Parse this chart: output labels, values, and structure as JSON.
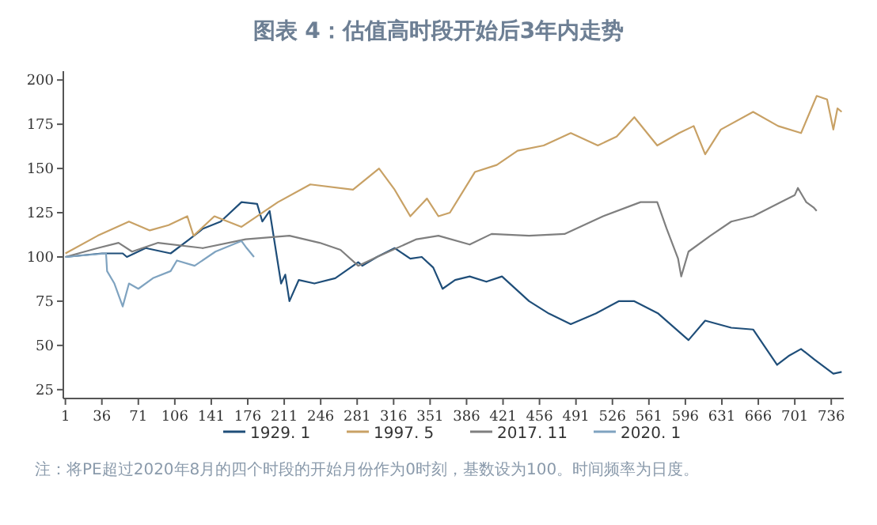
{
  "chart_data": {
    "type": "line",
    "title": "图表 4：估值高时段开始后3年内走势",
    "annotations": [
      "注：将PE超过2020年8月的四个时段的开始月份作为0时刻，基数设为100。时间频率为日度。"
    ],
    "xlim": [
      -1,
      748
    ],
    "xticks": [
      1,
      36,
      71,
      106,
      141,
      176,
      211,
      246,
      281,
      316,
      351,
      386,
      421,
      456,
      491,
      526,
      561,
      596,
      631,
      666,
      701,
      736
    ],
    "ylim": [
      20,
      205
    ],
    "yticks": [
      25,
      50,
      75,
      100,
      125,
      150,
      175,
      200
    ],
    "grid": false,
    "legend": "bottom",
    "series": [
      {
        "name": "1929. 1",
        "color": "#1f4e79",
        "x": [
          1,
          36,
          56,
          60,
          78,
          102,
          120,
          133,
          150,
          170,
          185,
          190,
          197,
          208,
          212,
          216,
          225,
          240,
          260,
          282,
          286,
          300,
          317,
          332,
          343,
          354,
          363,
          375,
          389,
          405,
          420,
          446,
          465,
          486,
          510,
          532,
          547,
          570,
          599,
          615,
          640,
          661,
          684,
          695,
          707,
          720,
          738,
          746
        ],
        "values": [
          100,
          102,
          102,
          100,
          105,
          102,
          110,
          116,
          120,
          131,
          130,
          120,
          126,
          85,
          90,
          75,
          87,
          85,
          88,
          97,
          95,
          100,
          105,
          99,
          100,
          94,
          82,
          87,
          89,
          86,
          89,
          75,
          68,
          62,
          68,
          75,
          75,
          68,
          53,
          64,
          60,
          59,
          39,
          44,
          48,
          42,
          34,
          35
        ]
      },
      {
        "name": "1997. 5",
        "color": "#c8a165",
        "x": [
          1,
          32,
          62,
          82,
          100,
          118,
          124,
          144,
          170,
          205,
          236,
          277,
          302,
          317,
          332,
          348,
          359,
          370,
          394,
          415,
          435,
          460,
          486,
          512,
          530,
          547,
          569,
          590,
          604,
          615,
          630,
          661,
          685,
          707,
          722,
          732,
          738,
          742,
          746
        ],
        "values": [
          102,
          112,
          120,
          115,
          118,
          123,
          112,
          123,
          117,
          131,
          141,
          138,
          150,
          138,
          123,
          133,
          123,
          125,
          148,
          152,
          160,
          163,
          170,
          163,
          168,
          179,
          163,
          170,
          174,
          158,
          172,
          182,
          174,
          170,
          191,
          189,
          172,
          184,
          182
        ]
      },
      {
        "name": "2017. 11",
        "color": "#7f7f7f",
        "x": [
          1,
          32,
          52,
          65,
          90,
          133,
          174,
          216,
          245,
          265,
          282,
          300,
          338,
          359,
          389,
          410,
          446,
          480,
          517,
          553,
          569,
          578,
          589,
          592,
          599,
          620,
          640,
          661,
          701,
          704,
          712,
          719,
          722
        ],
        "values": [
          100,
          105,
          108,
          103,
          108,
          105,
          110,
          112,
          108,
          104,
          95,
          100,
          110,
          112,
          107,
          113,
          112,
          113,
          123,
          131,
          131,
          116,
          99,
          89,
          103,
          112,
          120,
          123,
          135,
          139,
          131,
          128,
          126
        ]
      },
      {
        "name": "2020. 1",
        "color": "#7fa3c0",
        "x": [
          1,
          40,
          41,
          48,
          56,
          62,
          71,
          85,
          102,
          108,
          125,
          145,
          170,
          175,
          182
        ],
        "values": [
          100,
          102,
          92,
          85,
          72,
          85,
          82,
          88,
          92,
          98,
          95,
          103,
          109,
          105,
          100
        ]
      }
    ]
  }
}
